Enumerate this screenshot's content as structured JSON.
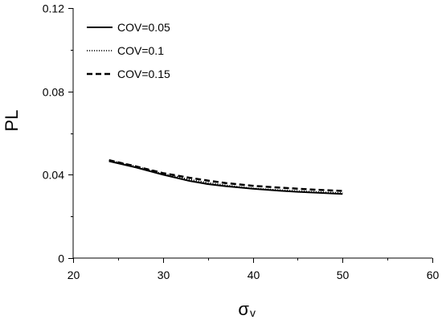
{
  "chart_data": {
    "type": "line",
    "xlabel": "σ",
    "xlabel_sub": "v",
    "ylabel": "PL",
    "xlim": [
      20,
      60
    ],
    "ylim": [
      0,
      0.12
    ],
    "xticks": [
      "20",
      "30",
      "40",
      "50",
      "60"
    ],
    "yticks": [
      "0",
      "0.04",
      "0.08",
      "0.12"
    ],
    "x_minor_step": 5,
    "y_minor_step": 0.02,
    "legend_position": "top-left",
    "grid": false,
    "series": [
      {
        "name": "COV=0.05",
        "dash": "solid",
        "x": [
          24,
          27,
          30,
          33,
          35,
          37,
          40,
          43,
          45,
          47,
          50
        ],
        "y": [
          0.0465,
          0.0435,
          0.04,
          0.037,
          0.0355,
          0.0345,
          0.0333,
          0.0323,
          0.0318,
          0.0314,
          0.0308
        ]
      },
      {
        "name": "COV=0.1",
        "dash": "dotted",
        "x": [
          24,
          27,
          30,
          33,
          35,
          37,
          40,
          43,
          45,
          47,
          50
        ],
        "y": [
          0.047,
          0.044,
          0.0405,
          0.0377,
          0.0362,
          0.035,
          0.0335,
          0.0327,
          0.0322,
          0.0318,
          0.0313
        ]
      },
      {
        "name": "COV=0.15",
        "dash": "dashed",
        "x": [
          24,
          27,
          30,
          33,
          35,
          37,
          40,
          43,
          45,
          47,
          50
        ],
        "y": [
          0.047,
          0.044,
          0.0408,
          0.0385,
          0.0372,
          0.036,
          0.0347,
          0.0338,
          0.0333,
          0.0328,
          0.0322
        ]
      }
    ]
  }
}
